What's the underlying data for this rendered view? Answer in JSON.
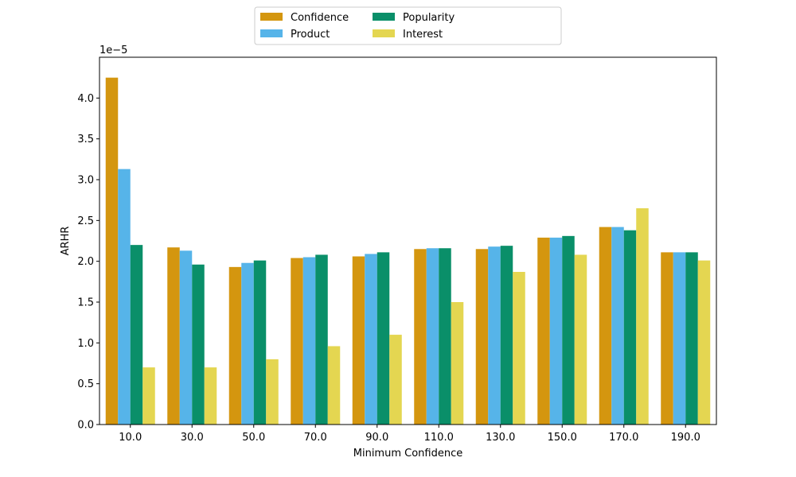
{
  "chart_data": {
    "type": "bar",
    "title": "",
    "xlabel": "Minimum Confidence",
    "ylabel": "ARHR",
    "y_offset_label": "1e−5",
    "categories": [
      "10.0",
      "30.0",
      "50.0",
      "70.0",
      "90.0",
      "110.0",
      "130.0",
      "150.0",
      "170.0",
      "190.0"
    ],
    "series": [
      {
        "name": "Confidence",
        "color": "#d4960f",
        "values": [
          4.25,
          2.17,
          1.93,
          2.04,
          2.06,
          2.15,
          2.15,
          2.29,
          2.42,
          2.11
        ]
      },
      {
        "name": "Product",
        "color": "#56b4e9",
        "values": [
          3.13,
          2.13,
          1.98,
          2.05,
          2.09,
          2.16,
          2.18,
          2.29,
          2.42,
          2.11
        ]
      },
      {
        "name": "Popularity",
        "color": "#0a8f69",
        "values": [
          2.2,
          1.96,
          2.01,
          2.08,
          2.11,
          2.16,
          2.19,
          2.31,
          2.38,
          2.11
        ]
      },
      {
        "name": "Interest",
        "color": "#e4d651",
        "values": [
          0.7,
          0.7,
          0.8,
          0.96,
          1.1,
          1.5,
          1.87,
          2.08,
          2.65,
          2.01
        ]
      }
    ],
    "ylim": [
      0,
      4.5
    ],
    "yticks": [
      "0.0",
      "0.5",
      "1.0",
      "1.5",
      "2.0",
      "2.5",
      "3.0",
      "3.5",
      "4.0"
    ],
    "legend": {
      "placement": "top-center",
      "columns": 3
    },
    "grid": false
  }
}
